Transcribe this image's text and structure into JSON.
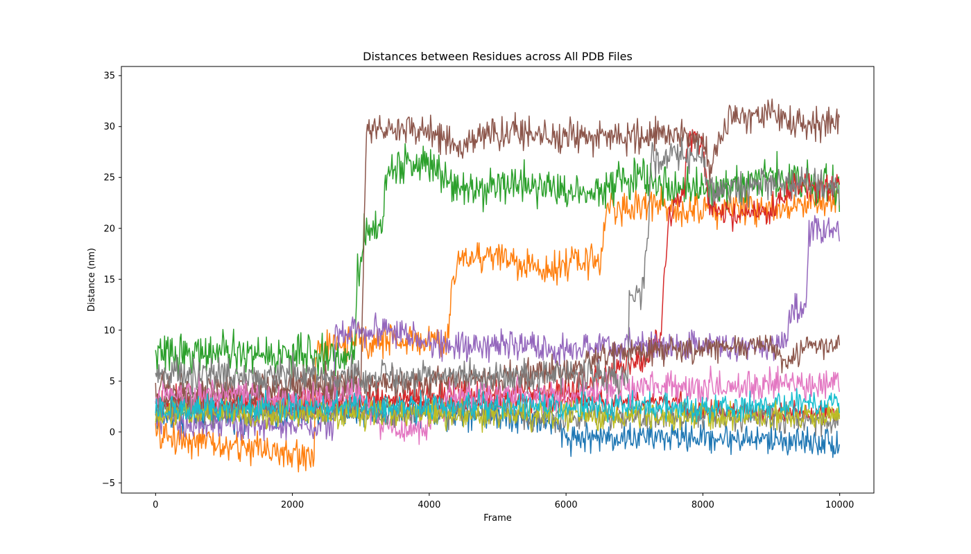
{
  "chart_data": {
    "type": "line",
    "title": "Distances between Residues across All PDB Files",
    "xlabel": "Frame",
    "ylabel": "Distance (nm)",
    "xlim": [
      -500,
      10500
    ],
    "ylim": [
      -6,
      35.9
    ],
    "xticks": [
      0,
      2000,
      4000,
      6000,
      8000,
      10000
    ],
    "yticks": [
      -5,
      0,
      5,
      10,
      15,
      20,
      25,
      30,
      35
    ],
    "grid": false,
    "legend": "none",
    "series": [
      {
        "color": "#1f77b4",
        "noise": 0.9,
        "points": [
          [
            0,
            1.5
          ],
          [
            2000,
            1.8
          ],
          [
            4000,
            2.0
          ],
          [
            5000,
            1.8
          ],
          [
            5800,
            1.0
          ],
          [
            6000,
            -0.5
          ],
          [
            8000,
            -0.5
          ],
          [
            9000,
            -0.8
          ],
          [
            10000,
            -1.0
          ]
        ]
      },
      {
        "color": "#ff7f0e",
        "noise": 1.0,
        "points": [
          [
            0,
            -0.3
          ],
          [
            600,
            -0.8
          ],
          [
            1000,
            -1.5
          ],
          [
            1700,
            -1.5
          ],
          [
            1800,
            -2.3
          ],
          [
            2320,
            -2.3
          ],
          [
            2340,
            8.0
          ],
          [
            3000,
            9.0
          ],
          [
            4000,
            9.0
          ],
          [
            4280,
            8.5
          ],
          [
            4300,
            12.0
          ],
          [
            4400,
            17.0
          ],
          [
            5000,
            17.5
          ],
          [
            5500,
            16.0
          ],
          [
            6500,
            17.0
          ],
          [
            6600,
            22.0
          ],
          [
            7000,
            22.0
          ],
          [
            7200,
            22.5
          ],
          [
            7500,
            22.0
          ],
          [
            8000,
            22.0
          ],
          [
            9000,
            22.0
          ],
          [
            10000,
            23.0
          ]
        ]
      },
      {
        "color": "#2ca02c",
        "noise": 1.2,
        "points": [
          [
            0,
            7.5
          ],
          [
            500,
            7.8
          ],
          [
            2000,
            7.5
          ],
          [
            2900,
            7.5
          ],
          [
            2950,
            15.0
          ],
          [
            3050,
            20.0
          ],
          [
            3300,
            20.0
          ],
          [
            3400,
            26.0
          ],
          [
            4000,
            26.5
          ],
          [
            4500,
            24.0
          ],
          [
            5500,
            24.5
          ],
          [
            6000,
            23.5
          ],
          [
            6500,
            24.0
          ],
          [
            7000,
            25.0
          ],
          [
            8000,
            23.5
          ],
          [
            9000,
            25.0
          ],
          [
            10000,
            24.0
          ]
        ]
      },
      {
        "color": "#d62728",
        "noise": 0.9,
        "points": [
          [
            0,
            3.0
          ],
          [
            2000,
            3.0
          ],
          [
            4000,
            3.5
          ],
          [
            6000,
            4.0
          ],
          [
            6800,
            6.0
          ],
          [
            7200,
            7.5
          ],
          [
            7400,
            10.0
          ],
          [
            7430,
            15.0
          ],
          [
            7500,
            20.0
          ],
          [
            7600,
            22.5
          ],
          [
            7700,
            22.5
          ],
          [
            7800,
            29.0
          ],
          [
            8000,
            28.0
          ],
          [
            8100,
            22.0
          ],
          [
            8500,
            21.0
          ],
          [
            9000,
            21.5
          ],
          [
            9300,
            24.0
          ],
          [
            10000,
            24.0
          ]
        ]
      },
      {
        "color": "#d62728",
        "noise": 0.6,
        "points": [
          [
            0,
            2.5
          ],
          [
            3000,
            2.5
          ],
          [
            5000,
            3.0
          ],
          [
            6000,
            3.0
          ],
          [
            7000,
            3.0
          ],
          [
            7700,
            3.0
          ],
          [
            7720,
            2.0
          ],
          [
            10000,
            2.0
          ]
        ]
      },
      {
        "color": "#9467bd",
        "noise": 0.9,
        "points": [
          [
            0,
            1.0
          ],
          [
            1000,
            0.8
          ],
          [
            2000,
            0.5
          ],
          [
            2600,
            0.5
          ],
          [
            2620,
            10.0
          ],
          [
            3500,
            10.0
          ],
          [
            4000,
            8.5
          ],
          [
            5000,
            8.5
          ],
          [
            6000,
            8.0
          ],
          [
            7000,
            8.5
          ],
          [
            8000,
            8.5
          ],
          [
            9000,
            8.5
          ],
          [
            9200,
            9.0
          ],
          [
            9300,
            12.0
          ],
          [
            9500,
            12.0
          ],
          [
            9550,
            20.0
          ],
          [
            10000,
            20.0
          ]
        ]
      },
      {
        "color": "#8c564b",
        "noise": 1.0,
        "points": [
          [
            0,
            4.0
          ],
          [
            2000,
            4.5
          ],
          [
            3000,
            5.0
          ],
          [
            3080,
            30.0
          ],
          [
            4000,
            29.5
          ],
          [
            4500,
            28.0
          ],
          [
            5000,
            29.5
          ],
          [
            6000,
            29.0
          ],
          [
            7000,
            29.0
          ],
          [
            7500,
            29.0
          ],
          [
            8000,
            29.0
          ],
          [
            8100,
            26.0
          ],
          [
            8400,
            31.0
          ],
          [
            9000,
            31.0
          ],
          [
            10000,
            30.0
          ]
        ]
      },
      {
        "color": "#8c564b",
        "noise": 0.8,
        "points": [
          [
            0,
            3.0
          ],
          [
            4000,
            5.0
          ],
          [
            6000,
            6.0
          ],
          [
            6500,
            7.5
          ],
          [
            7500,
            8.0
          ],
          [
            8000,
            8.0
          ],
          [
            9000,
            8.5
          ],
          [
            9200,
            6.5
          ],
          [
            9500,
            8.5
          ],
          [
            10000,
            8.5
          ]
        ]
      },
      {
        "color": "#e377c2",
        "noise": 1.0,
        "points": [
          [
            0,
            3.5
          ],
          [
            1000,
            4.0
          ],
          [
            2000,
            3.0
          ],
          [
            3000,
            3.5
          ],
          [
            3300,
            0.5
          ],
          [
            4000,
            0.5
          ],
          [
            4300,
            3.5
          ],
          [
            5000,
            3.5
          ],
          [
            6000,
            3.5
          ],
          [
            7000,
            4.5
          ],
          [
            8000,
            4.5
          ],
          [
            10000,
            4.8
          ]
        ]
      },
      {
        "color": "#7f7f7f",
        "noise": 1.0,
        "points": [
          [
            0,
            5.5
          ],
          [
            2000,
            5.5
          ],
          [
            4000,
            5.5
          ],
          [
            5000,
            5.5
          ],
          [
            6000,
            5.5
          ],
          [
            6900,
            5.5
          ],
          [
            6920,
            13.0
          ],
          [
            7100,
            13.0
          ],
          [
            7200,
            20.0
          ],
          [
            7250,
            27.0
          ],
          [
            8000,
            27.0
          ],
          [
            8100,
            23.5
          ],
          [
            9000,
            24.5
          ],
          [
            10000,
            24.0
          ]
        ]
      },
      {
        "color": "#7f7f7f",
        "noise": 0.8,
        "points": [
          [
            0,
            2.0
          ],
          [
            3000,
            2.0
          ],
          [
            5000,
            2.0
          ],
          [
            5500,
            1.5
          ],
          [
            7000,
            1.5
          ],
          [
            8000,
            1.5
          ],
          [
            9000,
            1.5
          ],
          [
            10000,
            1.0
          ]
        ]
      },
      {
        "color": "#bcbd22",
        "noise": 0.8,
        "points": [
          [
            0,
            1.8
          ],
          [
            2000,
            1.8
          ],
          [
            4000,
            1.8
          ],
          [
            6000,
            1.5
          ],
          [
            8000,
            1.5
          ],
          [
            10000,
            1.5
          ]
        ]
      },
      {
        "color": "#17becf",
        "noise": 0.8,
        "points": [
          [
            0,
            2.0
          ],
          [
            2000,
            2.5
          ],
          [
            4000,
            2.5
          ],
          [
            6000,
            2.5
          ],
          [
            8000,
            2.5
          ],
          [
            10000,
            2.8
          ]
        ]
      }
    ]
  }
}
